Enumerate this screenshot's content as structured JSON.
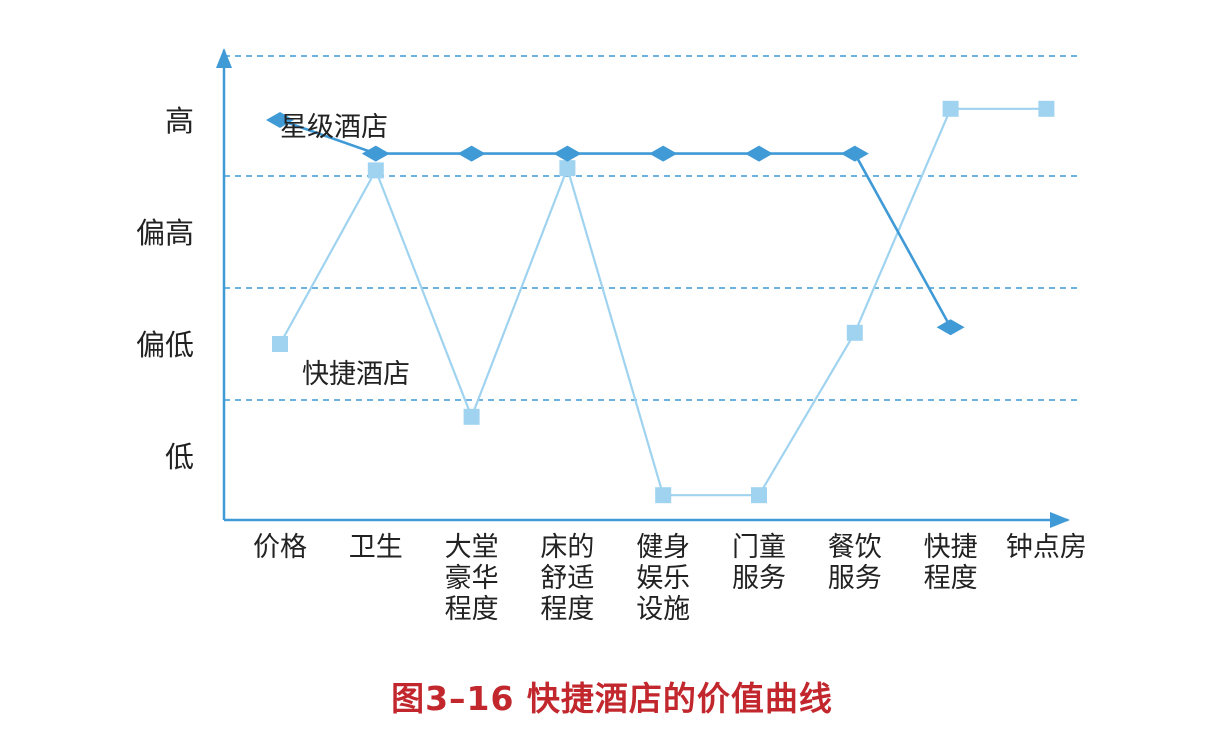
{
  "caption": "图3–16 快捷酒店的价值曲线",
  "chart_data": {
    "type": "line",
    "title": "图3–16 快捷酒店的价值曲线",
    "categories": [
      [
        "价格"
      ],
      [
        "卫生"
      ],
      [
        "大堂",
        "豪华",
        "程度"
      ],
      [
        "床的",
        "舒适",
        "程度"
      ],
      [
        "健身",
        "娱乐",
        "设施"
      ],
      [
        "门童",
        "服务"
      ],
      [
        "餐饮",
        "服务"
      ],
      [
        "快捷",
        "程度"
      ],
      [
        "钟点房"
      ]
    ],
    "y_levels": [
      "低",
      "偏低",
      "偏高",
      "高"
    ],
    "y_range": [
      0,
      4
    ],
    "grid": "dashed horizontal",
    "series": [
      {
        "name": "星级酒店",
        "marker": "diamond",
        "color": "#3f9ad6",
        "values": [
          3.5,
          3.2,
          3.2,
          3.2,
          3.2,
          3.2,
          3.2,
          1.65,
          null
        ]
      },
      {
        "name": "快捷酒店",
        "marker": "square",
        "color": "#9fd3f0",
        "values": [
          1.5,
          3.05,
          0.85,
          3.07,
          0.15,
          0.15,
          1.6,
          3.6,
          3.6
        ]
      }
    ]
  }
}
